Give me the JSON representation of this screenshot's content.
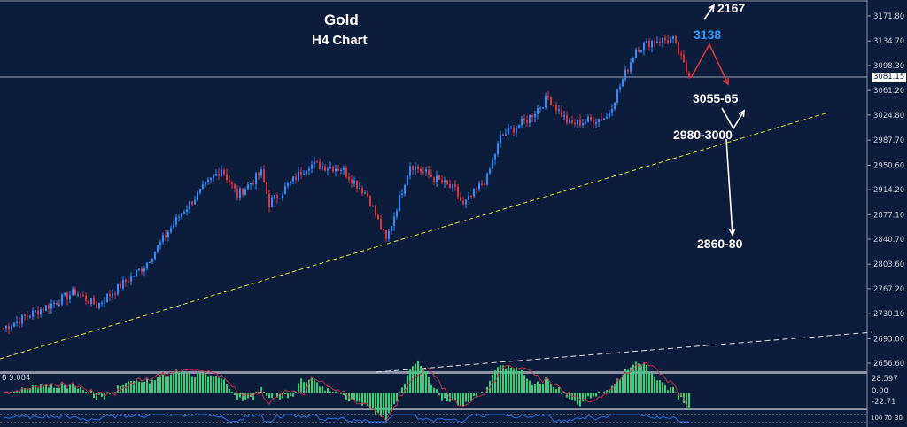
{
  "title": "Gold",
  "subtitle": "H4 Chart",
  "annotations": {
    "top": "2167",
    "target_blue": "3138",
    "zone1": "3055-65",
    "zone2": "2980-3000",
    "zone3": "2860-80"
  },
  "current_price": "3081.15",
  "indicator_label": "8 9.084",
  "macd_axis": [
    "28.597",
    "0.00",
    "-22.71"
  ],
  "rsi_axis": [
    "100",
    "70",
    "30"
  ],
  "colors": {
    "bg": "#0b1d3a",
    "up": "#2f8cff",
    "down": "#e0303a",
    "trend": "#d7e03a",
    "macd": "#35d27a"
  },
  "chart_data": {
    "type": "candlestick",
    "title": "Gold H4 Chart",
    "y_ticks": [
      3171.8,
      3134.7,
      3098.3,
      3061.2,
      3024.8,
      2987.7,
      2950.6,
      2914.2,
      2877.1,
      2840.7,
      2803.6,
      2767.2,
      2730.1,
      2693.0,
      2656.6
    ],
    "ylim": [
      2645,
      3190
    ],
    "close_path": [
      [
        0,
        2709
      ],
      [
        27,
        2762
      ],
      [
        35,
        2742
      ],
      [
        53,
        2801
      ],
      [
        67,
        2880
      ],
      [
        82,
        2946
      ],
      [
        88,
        2906
      ],
      [
        97,
        2939
      ],
      [
        100,
        2893
      ],
      [
        115,
        2952
      ],
      [
        127,
        2946
      ],
      [
        137,
        2906
      ],
      [
        144,
        2838
      ],
      [
        153,
        2952
      ],
      [
        170,
        2913
      ],
      [
        173,
        2890
      ],
      [
        182,
        2932
      ],
      [
        187,
        2992
      ],
      [
        197,
        3018
      ],
      [
        205,
        3051
      ],
      [
        213,
        3011
      ],
      [
        227,
        3022
      ],
      [
        233,
        3077
      ],
      [
        238,
        3123
      ],
      [
        245,
        3136
      ],
      [
        252,
        3136
      ],
      [
        258,
        3080
      ]
    ]
  }
}
